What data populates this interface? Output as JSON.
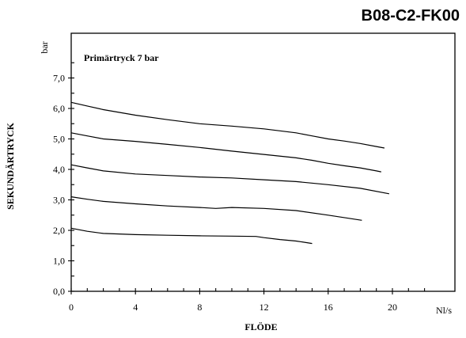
{
  "code": "B08-C2-FK00",
  "chart_data": {
    "type": "line",
    "title": "B08-C2-FK00",
    "annotation": "Primärtryck 7 bar",
    "xlabel": "FLÖDE",
    "x_unit": "Nl/s",
    "ylabel": "SEKUNDÄRTRYCK",
    "y_unit": "bar",
    "xlim": [
      0,
      22
    ],
    "ylim": [
      0,
      8
    ],
    "x_ticks": [
      "0",
      "4",
      "8",
      "12",
      "16",
      "20"
    ],
    "x_tick_values": [
      0,
      4,
      8,
      12,
      16,
      20
    ],
    "y_ticks": [
      "0,0",
      "1,0",
      "2,0",
      "3,0",
      "4,0",
      "5,0",
      "6,0",
      "7,0"
    ],
    "y_tick_values": [
      0,
      1,
      2,
      3,
      4,
      5,
      6,
      7
    ],
    "grid": false,
    "legend": "none",
    "series": [
      {
        "x": [
          0,
          1,
          2,
          3,
          4,
          6,
          8,
          10,
          12,
          14,
          15,
          16,
          17,
          18,
          19,
          19.5
        ],
        "y": [
          6.2,
          6.08,
          5.96,
          5.87,
          5.78,
          5.63,
          5.5,
          5.42,
          5.33,
          5.2,
          5.1,
          5.0,
          4.93,
          4.85,
          4.75,
          4.7
        ]
      },
      {
        "x": [
          0,
          1,
          2,
          4,
          6,
          8,
          10,
          12,
          14,
          15,
          16,
          17,
          18,
          19,
          19.3
        ],
        "y": [
          5.2,
          5.1,
          5.0,
          4.92,
          4.82,
          4.72,
          4.6,
          4.49,
          4.38,
          4.3,
          4.2,
          4.12,
          4.05,
          3.95,
          3.92
        ]
      },
      {
        "x": [
          0,
          1,
          2,
          4,
          6,
          8,
          10,
          12,
          14,
          16,
          18,
          19.8
        ],
        "y": [
          4.15,
          4.05,
          3.95,
          3.85,
          3.8,
          3.75,
          3.72,
          3.66,
          3.6,
          3.5,
          3.38,
          3.2
        ]
      },
      {
        "x": [
          0,
          1,
          2,
          4,
          6,
          8,
          9,
          10,
          12,
          14,
          16,
          18.1
        ],
        "y": [
          3.1,
          3.02,
          2.95,
          2.87,
          2.8,
          2.75,
          2.72,
          2.75,
          2.72,
          2.65,
          2.5,
          2.33
        ]
      },
      {
        "x": [
          0,
          1,
          2,
          4,
          6,
          8,
          10,
          11.5,
          12,
          13,
          14,
          15
        ],
        "y": [
          2.07,
          1.97,
          1.9,
          1.86,
          1.84,
          1.82,
          1.81,
          1.8,
          1.76,
          1.7,
          1.65,
          1.57
        ]
      }
    ]
  }
}
